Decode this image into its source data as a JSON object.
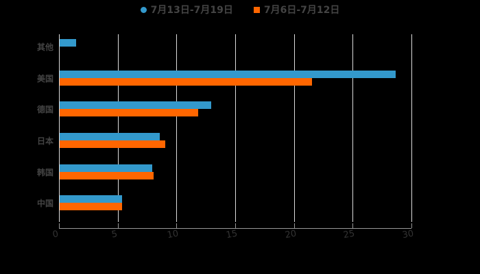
{
  "chart_data": {
    "type": "bar",
    "orientation": "horizontal",
    "title": "",
    "xlabel": "",
    "ylabel": "",
    "xlim": [
      0,
      30
    ],
    "xticks": [
      0,
      5,
      10,
      15,
      20,
      25,
      30
    ],
    "grid": true,
    "legend_position": "top",
    "categories": [
      "其他",
      "美国",
      "德国",
      "日本",
      "韩国",
      "中国"
    ],
    "series": [
      {
        "name": "7月13日-7月19日",
        "color": "#3399cc",
        "marker": "circle",
        "values": [
          1.4,
          28.6,
          12.9,
          8.5,
          7.9,
          5.3
        ]
      },
      {
        "name": "7月6日-7月12日",
        "color": "#ff6600",
        "marker": "square",
        "values": [
          0,
          21.5,
          11.8,
          9.0,
          8.0,
          5.3
        ]
      }
    ]
  },
  "legend": {
    "items": [
      {
        "label": "7月13日-7月19日",
        "color": "#3399cc"
      },
      {
        "label": "7月6日-7月12日",
        "color": "#ff6600"
      }
    ]
  }
}
